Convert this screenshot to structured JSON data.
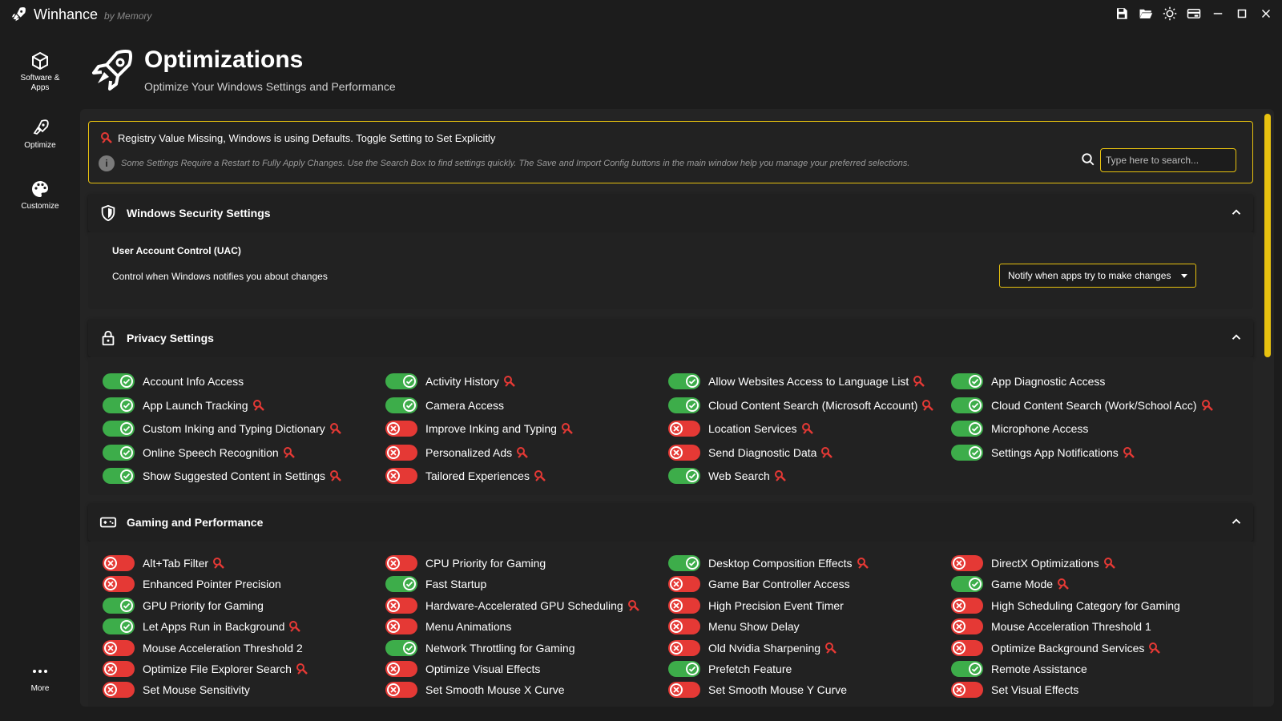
{
  "window": {
    "app_name": "Winhance",
    "app_sub": "by Memory"
  },
  "titlebar_buttons": [
    {
      "name": "save-config-button",
      "icon": "save-icon"
    },
    {
      "name": "import-config-button",
      "icon": "folder-open-icon"
    },
    {
      "name": "theme-toggle-button",
      "icon": "sun-icon"
    },
    {
      "name": "donate-button",
      "icon": "card-icon"
    },
    {
      "name": "minimize-button",
      "icon": "minimize-icon"
    },
    {
      "name": "maximize-button",
      "icon": "maximize-icon"
    },
    {
      "name": "close-button",
      "icon": "close-icon"
    }
  ],
  "sidebar": {
    "items": [
      {
        "label": "Software &\nApps",
        "icon": "cube-icon"
      },
      {
        "label": "Optimize",
        "icon": "rocket-icon"
      },
      {
        "label": "Customize",
        "icon": "palette-icon"
      }
    ],
    "more": "More"
  },
  "header": {
    "title": "Optimizations",
    "subtitle": "Optimize Your Windows Settings and Performance"
  },
  "notice": {
    "registry_text": "Registry Value Missing, Windows is using Defaults. Toggle Setting to Set Explicitly",
    "info_text": "Some Settings Require a Restart to Fully Apply Changes. Use the Search Box to find settings quickly. The Save and Import Config buttons in the main window help you manage your preferred selections.",
    "search_placeholder": "Type here to search..."
  },
  "colors": {
    "accent": "#e8c20f",
    "on": "#3dad4a",
    "off": "#e53935"
  },
  "sections": {
    "security": {
      "title": "Windows Security Settings",
      "uac_title": "User Account Control (UAC)",
      "uac_desc": "Control when Windows notifies you about changes",
      "uac_value": "Notify when apps try to make changes"
    },
    "privacy": {
      "title": "Privacy Settings",
      "items": [
        {
          "label": "Account Info Access",
          "on": true,
          "missing": false
        },
        {
          "label": "Activity History",
          "on": true,
          "missing": true
        },
        {
          "label": "Allow Websites Access to Language List",
          "on": true,
          "missing": true
        },
        {
          "label": "App Diagnostic Access",
          "on": true,
          "missing": false
        },
        {
          "label": "App Launch Tracking",
          "on": true,
          "missing": true
        },
        {
          "label": "Camera Access",
          "on": true,
          "missing": false
        },
        {
          "label": "Cloud Content Search (Microsoft Account)",
          "on": true,
          "missing": true
        },
        {
          "label": "Cloud Content Search (Work/School Acc)",
          "on": true,
          "missing": true
        },
        {
          "label": "Custom Inking and Typing Dictionary",
          "on": true,
          "missing": true
        },
        {
          "label": "Improve Inking and Typing",
          "on": false,
          "missing": true
        },
        {
          "label": "Location Services",
          "on": false,
          "missing": true
        },
        {
          "label": "Microphone Access",
          "on": true,
          "missing": false
        },
        {
          "label": "Online Speech Recognition",
          "on": true,
          "missing": true
        },
        {
          "label": "Personalized Ads",
          "on": false,
          "missing": true
        },
        {
          "label": "Send Diagnostic Data",
          "on": false,
          "missing": true
        },
        {
          "label": "Settings App Notifications",
          "on": true,
          "missing": true
        },
        {
          "label": "Show Suggested Content in Settings",
          "on": true,
          "missing": true
        },
        {
          "label": "Tailored Experiences",
          "on": false,
          "missing": true
        },
        {
          "label": "Web Search",
          "on": true,
          "missing": true
        }
      ]
    },
    "gaming": {
      "title": "Gaming and Performance",
      "items": [
        {
          "label": "Alt+Tab Filter",
          "on": false,
          "missing": true
        },
        {
          "label": "CPU Priority for Gaming",
          "on": false,
          "missing": false
        },
        {
          "label": "Desktop Composition Effects",
          "on": true,
          "missing": true
        },
        {
          "label": "DirectX Optimizations",
          "on": false,
          "missing": true
        },
        {
          "label": "Enhanced Pointer Precision",
          "on": false,
          "missing": false
        },
        {
          "label": "Fast Startup",
          "on": true,
          "missing": false
        },
        {
          "label": "Game Bar Controller Access",
          "on": false,
          "missing": false
        },
        {
          "label": "Game Mode",
          "on": true,
          "missing": true
        },
        {
          "label": "GPU Priority for Gaming",
          "on": true,
          "missing": false
        },
        {
          "label": "Hardware-Accelerated GPU Scheduling",
          "on": false,
          "missing": true
        },
        {
          "label": "High Precision Event Timer",
          "on": false,
          "missing": false
        },
        {
          "label": "High Scheduling Category for Gaming",
          "on": false,
          "missing": false
        },
        {
          "label": "Let Apps Run in Background",
          "on": true,
          "missing": true
        },
        {
          "label": "Menu Animations",
          "on": false,
          "missing": false
        },
        {
          "label": "Menu Show Delay",
          "on": false,
          "missing": false
        },
        {
          "label": "Mouse Acceleration Threshold 1",
          "on": false,
          "missing": false
        },
        {
          "label": "Mouse Acceleration Threshold 2",
          "on": false,
          "missing": false
        },
        {
          "label": "Network Throttling for Gaming",
          "on": true,
          "missing": false
        },
        {
          "label": "Old Nvidia Sharpening",
          "on": false,
          "missing": true
        },
        {
          "label": "Optimize Background Services",
          "on": false,
          "missing": true
        },
        {
          "label": "Optimize File Explorer Search",
          "on": false,
          "missing": true
        },
        {
          "label": "Optimize Visual Effects",
          "on": false,
          "missing": false
        },
        {
          "label": "Prefetch Feature",
          "on": true,
          "missing": false
        },
        {
          "label": "Remote Assistance",
          "on": true,
          "missing": false
        },
        {
          "label": "Set Mouse Sensitivity",
          "on": false,
          "missing": false
        },
        {
          "label": "Set Smooth Mouse X Curve",
          "on": false,
          "missing": false
        },
        {
          "label": "Set Smooth Mouse Y Curve",
          "on": false,
          "missing": false
        },
        {
          "label": "Set Visual Effects",
          "on": false,
          "missing": false
        }
      ]
    }
  }
}
